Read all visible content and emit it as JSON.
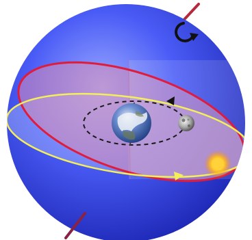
{
  "diagram": {
    "labels": [],
    "colors": {
      "background": "#ffffff",
      "celestial_sphere_light": "#8d9cff",
      "celestial_sphere_mid": "#3f55f4",
      "celestial_sphere_dark": "#1c25b8",
      "rotation_axis": "#b42a3c",
      "celestial_equator_plane": "#d98cb5",
      "celestial_equator_line": "#e01c3c",
      "ecliptic_line": "#f4ee5a",
      "ecliptic_plane": "#c8d6ff",
      "moon_orbit": "#1a1a1a",
      "earth_ocean": "#2a55a8",
      "sun": "#ffb020",
      "moon": "#c9c9c9",
      "rotation_arrow": "#111111",
      "direction_arrow": "#f4ee5a"
    },
    "icons": [
      "earth-icon",
      "moon-icon",
      "sun-icon",
      "rotation-arrow-icon",
      "orbit-direction-arrow-icon",
      "ecliptic-direction-arrow-icon"
    ]
  }
}
